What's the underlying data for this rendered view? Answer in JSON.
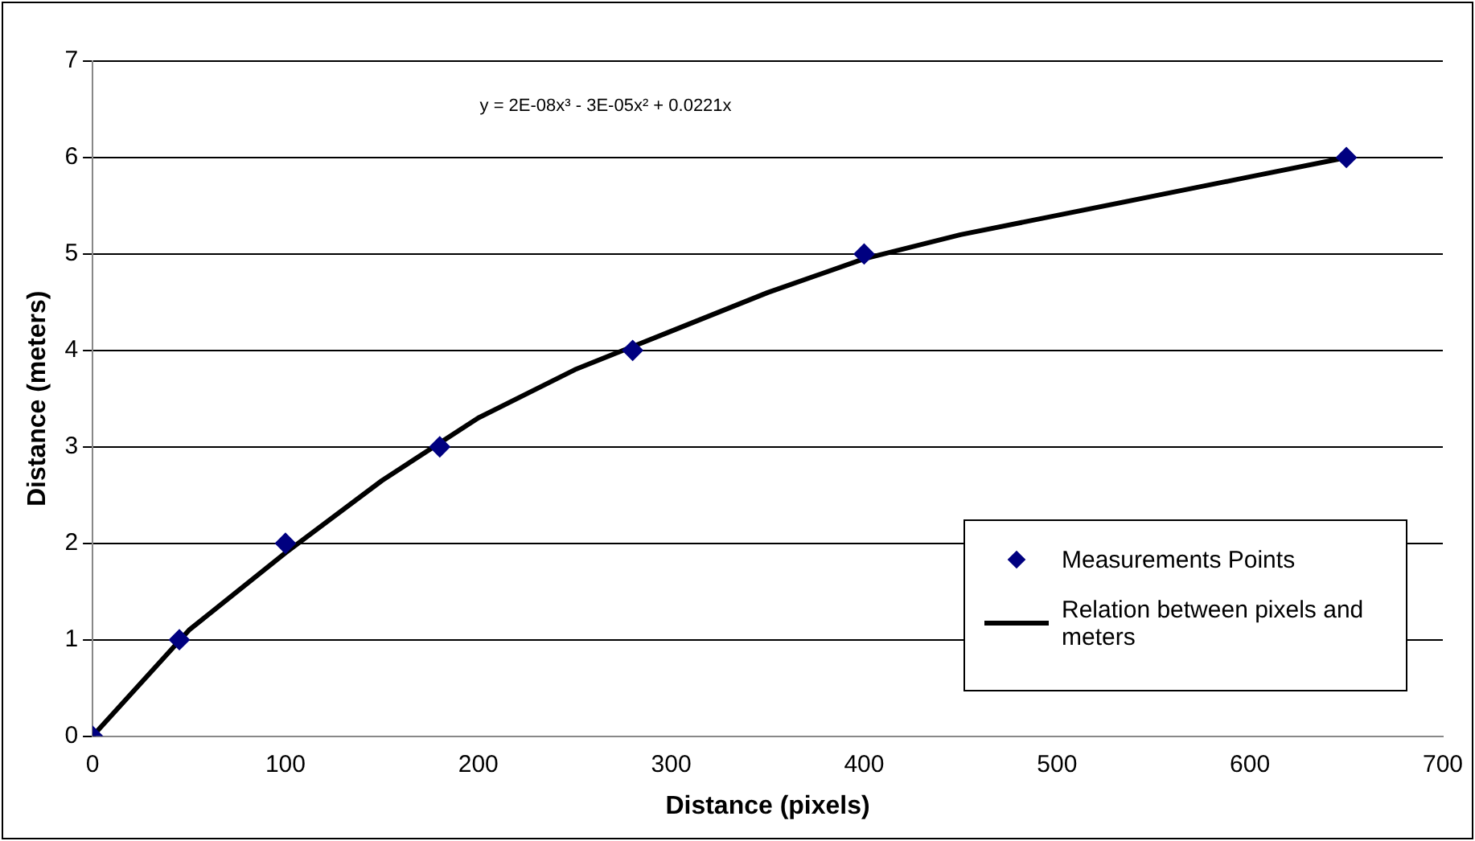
{
  "chart_data": {
    "type": "scatter",
    "xlabel": "Distance (pixels)",
    "ylabel": "Distance (meters)",
    "annotations": [
      "y = 2E-08x³ - 3E-05x² + 0.0221x"
    ],
    "series": [
      {
        "name": "Measurements Points",
        "color": "#000080",
        "marker": "diamond",
        "x": [
          0,
          45,
          100,
          180,
          280,
          400,
          650
        ],
        "values": [
          0,
          1,
          2,
          3,
          4,
          5,
          6
        ]
      },
      {
        "name": "Relation between pixels and meters",
        "type": "line",
        "color": "#000000",
        "marker": "none",
        "line_style": "solid",
        "x": [
          0,
          50,
          100,
          150,
          200,
          250,
          300,
          350,
          400,
          450,
          500,
          550,
          600,
          650
        ],
        "values": [
          0,
          1.1,
          1.9,
          2.65,
          3.3,
          3.8,
          4.2,
          4.6,
          4.95,
          5.2,
          5.4,
          5.6,
          5.8,
          6.0
        ]
      }
    ],
    "xlim": [
      0,
      700
    ],
    "xticks": [
      0,
      100,
      200,
      300,
      400,
      500,
      600,
      700
    ],
    "ylim": [
      0,
      7
    ],
    "yticks": [
      0,
      1,
      2,
      3,
      4,
      5,
      6,
      7
    ],
    "grid": "y",
    "legend": "bottom right"
  }
}
